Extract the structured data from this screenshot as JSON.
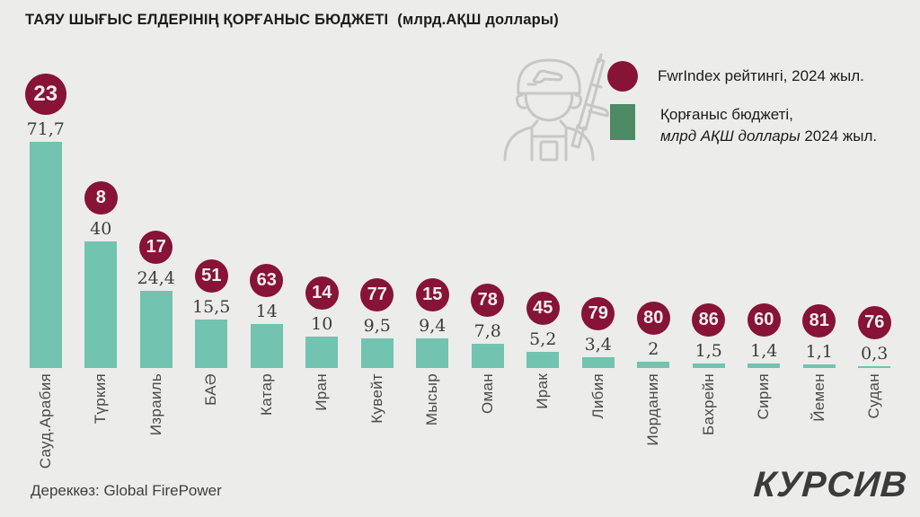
{
  "title": {
    "main": "ТАЯУ ШЫҒЫС ЕЛДЕРІНІҢ ҚОРҒАНЫС БЮДЖЕТІ",
    "unit": "(млрд.АҚШ доллары)"
  },
  "legend": {
    "rank_label": "FwrIndex рейтингі, 2024 жыл.",
    "budget_line1": "Қорғаныс бюджеті,",
    "budget_line2_italic": "млрд АҚШ доллары",
    "budget_line2_rest": " 2024 жыл."
  },
  "source": "Дереккөз: Global FirePower",
  "logo": "КУРСИВ",
  "icons": {
    "soldier": "soldier-with-rifle-icon"
  },
  "colors": {
    "background": "#ececea",
    "bar": "#72c3af",
    "rank_badge": "#871337",
    "legend_square": "#4e8a63",
    "icon_stroke": "#c7c7c7"
  },
  "chart_data": {
    "type": "bar",
    "title": "ТАЯУ ШЫҒЫС ЕЛДЕРІНІҢ ҚОРҒАНЫС БЮДЖЕТІ (млрд.АҚШ доллары)",
    "categories": [
      "Сауд.Арабия",
      "Түркия",
      "Израиль",
      "БАӘ",
      "Катар",
      "Иран",
      "Кувейт",
      "Мысыр",
      "Оман",
      "Ирак",
      "Либия",
      "Иордания",
      "Бахрейн",
      "Сирия",
      "Йемен",
      "Судан"
    ],
    "series": [
      {
        "name": "Қорғаныс бюджеті, млрд АҚШ доллары 2024 жыл.",
        "values": [
          71.7,
          40,
          24.4,
          15.5,
          14,
          10,
          9.5,
          9.4,
          7.8,
          5.2,
          3.4,
          2,
          1.5,
          1.4,
          1.1,
          0.3
        ],
        "display": [
          "71,7",
          "40",
          "24,4",
          "15,5",
          "14",
          "10",
          "9,5",
          "9,4",
          "7,8",
          "5,2",
          "3,4",
          "2",
          "1,5",
          "1,4",
          "1,1",
          "0,3"
        ]
      },
      {
        "name": "FwrIndex рейтингі, 2024 жыл.",
        "values": [
          23,
          8,
          17,
          51,
          63,
          14,
          77,
          15,
          78,
          45,
          79,
          80,
          86,
          60,
          81,
          76
        ]
      }
    ],
    "ylabel": "млрд АҚШ доллары",
    "ylim": [
      0,
      75
    ],
    "grid": false,
    "legend_position": "top-right",
    "value_labels_shown": true
  }
}
